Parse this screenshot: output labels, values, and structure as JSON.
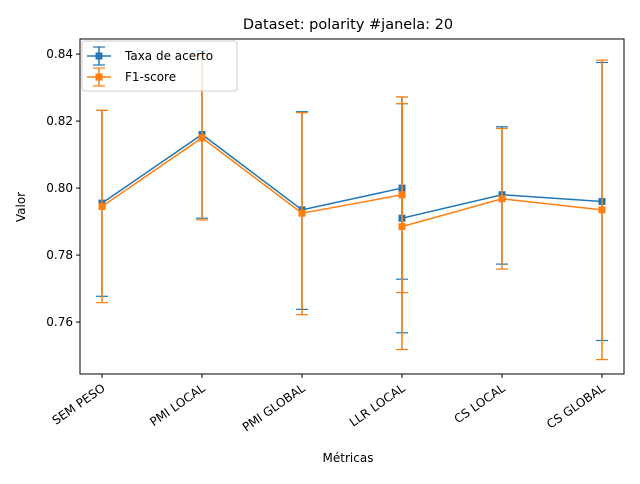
{
  "chart_data": {
    "type": "line",
    "title": "Dataset: polarity #janela: 20",
    "xlabel": "Métricas",
    "ylabel": "Valor",
    "categories": [
      "SEM PESO",
      "PMI LOCAL",
      "PMI GLOBAL",
      "LLR LOCAL",
      "LLR LOCAL",
      "CS LOCAL",
      "CS GLOBAL"
    ],
    "x_positions": [
      0,
      1,
      2,
      3,
      3,
      4,
      5
    ],
    "tick_labels": [
      "SEM PESO",
      "PMI LOCAL",
      "PMI GLOBAL",
      "LLR LOCAL",
      "CS LOCAL",
      "CS GLOBAL"
    ],
    "yticks": [
      "0.76",
      "0.78",
      "0.80",
      "0.82",
      "0.84"
    ],
    "ylim": [
      0.7445,
      0.8445
    ],
    "legend_position": "top-left",
    "grid": false,
    "series": [
      {
        "name": "Taxa de acerto",
        "color": "#1f77b4",
        "marker": "square",
        "values": [
          0.7955,
          0.816,
          0.7935,
          0.8,
          0.791,
          0.798,
          0.796
        ],
        "err_low": [
          0.7677,
          0.791,
          0.7638,
          0.7728,
          0.7568,
          0.7773,
          0.7545
        ],
        "err_high": [
          0.8232,
          0.841,
          0.8228,
          0.8252,
          0.8272,
          0.8183,
          0.8375
        ]
      },
      {
        "name": "F1-score",
        "color": "#ff7f0e",
        "marker": "square",
        "values": [
          0.7945,
          0.815,
          0.7925,
          0.798,
          0.7885,
          0.7968,
          0.7935
        ],
        "err_low": [
          0.7658,
          0.7905,
          0.7622,
          0.7688,
          0.7518,
          0.7758,
          0.7488
        ],
        "err_high": [
          0.8232,
          0.8395,
          0.8225,
          0.8272,
          0.8252,
          0.8178,
          0.8382
        ]
      }
    ]
  }
}
